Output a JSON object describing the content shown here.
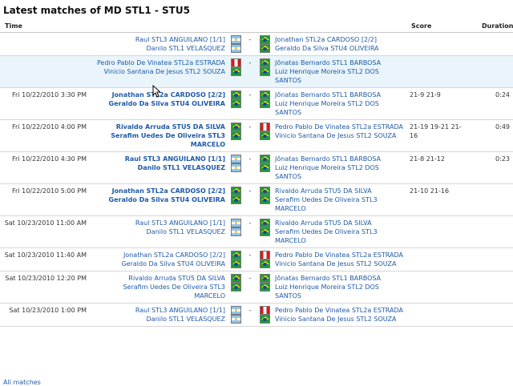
{
  "title": "Latest matches of MD STL1 - STU5",
  "headers": {
    "time": "Time",
    "score": "Score",
    "duration": "Duration"
  },
  "separator": "-",
  "all_matches": "All matches",
  "rows": [
    {
      "time": "",
      "p1": [
        "Raul STL3 ANGUILANO [1/1]",
        "Danilo STL1 VELASQUEZ"
      ],
      "f1": [
        "ar",
        "ar"
      ],
      "p2": [
        "Jonathan STL2a CARDOSO [2/2]",
        "Geraldo Da Silva STU4 OLIVEIRA"
      ],
      "f2": [
        "br",
        "br"
      ],
      "score": "",
      "duration": "",
      "winner": 0,
      "hl": false
    },
    {
      "time": "",
      "p1": [
        "Pedro Pablo De Vinatea STL2a ESTRADA",
        "Vinicio Santana De Jesus STL2 SOUZA"
      ],
      "f1": [
        "pe",
        "br"
      ],
      "p2": [
        "Jônatas Bernardo STL1 BARBOSA",
        "Luiz Henrique Moreira STL2 DOS SANTOS"
      ],
      "f2": [
        "br",
        "br"
      ],
      "score": "",
      "duration": "",
      "winner": 0,
      "hl": true
    },
    {
      "time": "Fri 10/22/2010 3:30 PM",
      "p1": [
        "Jonathan STL2a CARDOSO [2/2]",
        "Geraldo Da Silva STU4 OLIVEIRA"
      ],
      "f1": [
        "br",
        "br"
      ],
      "p2": [
        "Jônatas Bernardo STL1 BARBOSA",
        "Luiz Henrique Moreira STL2 DOS SANTOS"
      ],
      "f2": [
        "br",
        "br"
      ],
      "score": "21-9 21-9",
      "duration": "0:24",
      "winner": 1,
      "hl": false
    },
    {
      "time": "Fri 10/22/2010 4:00 PM",
      "p1": [
        "Rivaldo Arruda STU5 DA SILVA",
        "Serafim Uedes De Oliveira STL3 MARCELO"
      ],
      "f1": [
        "br",
        "br"
      ],
      "p2": [
        "Pedro Pablo De Vinatea STL2a ESTRADA",
        "Vinicio Santana De Jesus STL2 SOUZA"
      ],
      "f2": [
        "pe",
        "br"
      ],
      "score": "21-19 19-21 21-16",
      "duration": "0:49",
      "winner": 1,
      "hl": false
    },
    {
      "time": "Fri 10/22/2010 4:30 PM",
      "p1": [
        "Raul STL3 ANGUILANO [1/1]",
        "Danilo STL1 VELASQUEZ"
      ],
      "f1": [
        "ar",
        "ar"
      ],
      "p2": [
        "Jônatas Bernardo STL1 BARBOSA",
        "Luiz Henrique Moreira STL2 DOS SANTOS"
      ],
      "f2": [
        "br",
        "br"
      ],
      "score": "21-8 21-12",
      "duration": "0:23",
      "winner": 1,
      "hl": false
    },
    {
      "time": "Fri 10/22/2010 5:00 PM",
      "p1": [
        "Jonathan STL2a CARDOSO [2/2]",
        "Geraldo Da Silva STU4 OLIVEIRA"
      ],
      "f1": [
        "br",
        "br"
      ],
      "p2": [
        "Rivaldo Arruda STU5 DA SILVA",
        "Serafim Uedes De Oliveira STL3 MARCELO"
      ],
      "f2": [
        "br",
        "br"
      ],
      "score": "21-10 21-16",
      "duration": "",
      "winner": 1,
      "hl": false
    },
    {
      "time": "Sat 10/23/2010 11:00 AM",
      "p1": [
        "Raul STL3 ANGUILANO [1/1]",
        "Danilo STL1 VELASQUEZ"
      ],
      "f1": [
        "ar",
        "ar"
      ],
      "p2": [
        "Rivaldo Arruda STU5 DA SILVA",
        "Serafim Uedes De Oliveira STL3 MARCELO"
      ],
      "f2": [
        "br",
        "br"
      ],
      "score": "",
      "duration": "",
      "winner": 0,
      "hl": false
    },
    {
      "time": "Sat 10/23/2010 11:40 AM",
      "p1": [
        "Jonathan STL2a CARDOSO [2/2]",
        "Geraldo Da Silva STU4 OLIVEIRA"
      ],
      "f1": [
        "br",
        "br"
      ],
      "p2": [
        "Pedro Pablo De Vinatea STL2a ESTRADA",
        "Vinicio Santana De Jesus STL2 SOUZA"
      ],
      "f2": [
        "pe",
        "br"
      ],
      "score": "",
      "duration": "",
      "winner": 0,
      "hl": false
    },
    {
      "time": "Sat 10/23/2010 12:20 PM",
      "p1": [
        "Rivaldo Arruda STU5 DA SILVA",
        "Serafim Uedes De Oliveira STL3 MARCELO"
      ],
      "f1": [
        "br",
        "br"
      ],
      "p2": [
        "Jônatas Bernardo STL1 BARBOSA",
        "Luiz Henrique Moreira STL2 DOS SANTOS"
      ],
      "f2": [
        "br",
        "br"
      ],
      "score": "",
      "duration": "",
      "winner": 0,
      "hl": false
    },
    {
      "time": "Sat 10/23/2010 1:00 PM",
      "p1": [
        "Raul STL3 ANGUILANO [1/1]",
        "Danilo STL1 VELASQUEZ"
      ],
      "f1": [
        "ar",
        "ar"
      ],
      "p2": [
        "Pedro Pablo De Vinatea STL2a ESTRADA",
        "Vinicio Santana De Jesus STL2 SOUZA"
      ],
      "f2": [
        "pe",
        "br"
      ],
      "score": "",
      "duration": "",
      "winner": 0,
      "hl": false
    }
  ]
}
